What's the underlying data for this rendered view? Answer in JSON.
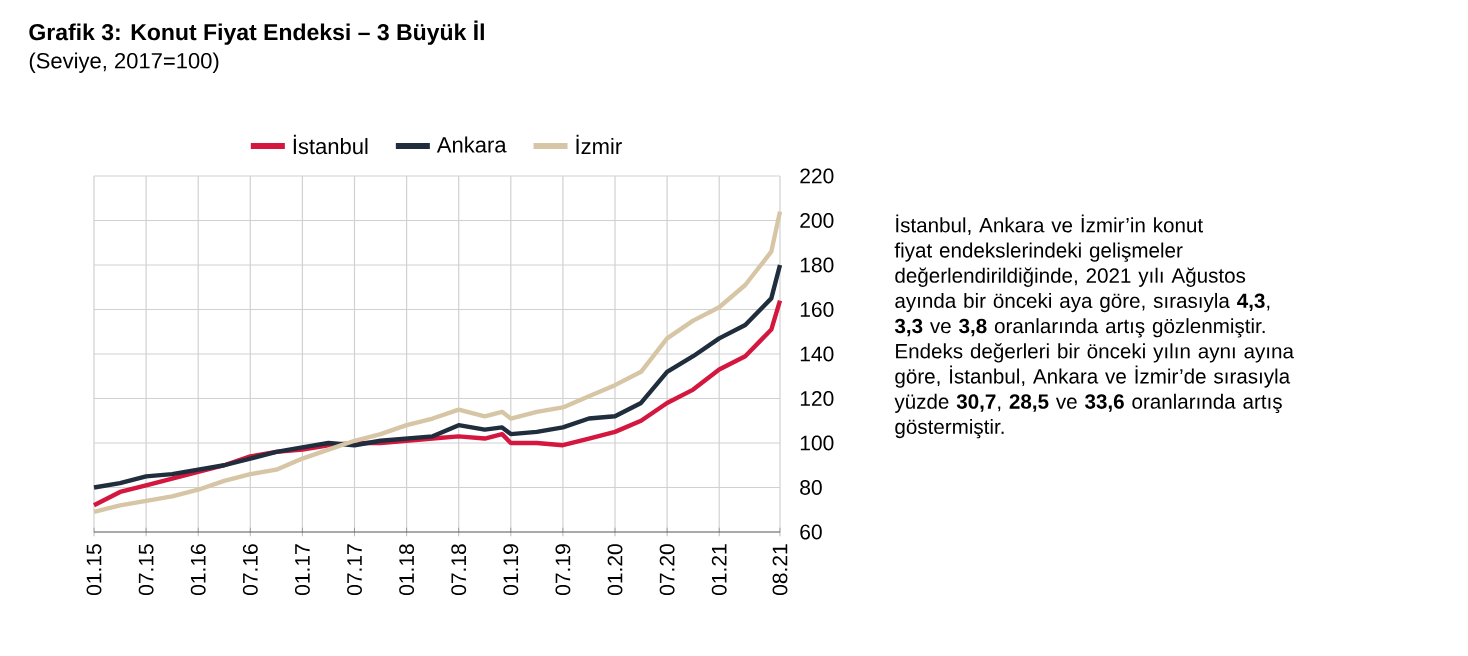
{
  "chart_data": {
    "type": "line",
    "title": "Grafik 3: Konut Fiyat Endeksi – 3 Büyük İl",
    "subtitle": "(Seviye, 2017=100)",
    "annotations": [
      "İstanbul, Ankara ve İzmir’in konut fiyat endekslerindeki gelişmeler değerlendirildiğinde, 2021 yılı Ağustos ayında bir önceki aya göre, sırasıyla **4,3**, **3,3** ve **3,8** oranlarında artış gözlenmiştir. Endeks değerleri bir önceki yılın aynı ayına göre, İstanbul, Ankara ve İzmir’de sırasıyla yüzde **30,7**, **28,5** ve **33,6** oranlarında artış göstermiştir."
    ],
    "x": [
      "2015-01",
      "2015-04",
      "2015-07",
      "2015-10",
      "2016-01",
      "2016-04",
      "2016-07",
      "2016-10",
      "2017-01",
      "2017-04",
      "2017-07",
      "2017-10",
      "2018-01",
      "2018-04",
      "2018-07",
      "2018-10",
      "2018-12",
      "2019-01",
      "2019-04",
      "2019-07",
      "2019-10",
      "2020-01",
      "2020-04",
      "2020-07",
      "2020-10",
      "2021-01",
      "2021-04",
      "2021-07",
      "2021-08"
    ],
    "series": [
      {
        "name": "İstanbul",
        "color": "#d4173f",
        "values": [
          72,
          78,
          81,
          84,
          87,
          90,
          94,
          96,
          97,
          99,
          100,
          100,
          101,
          102,
          103,
          102,
          104,
          100,
          100,
          99,
          102,
          105,
          110,
          118,
          124,
          133,
          139,
          151,
          164
        ]
      },
      {
        "name": "Ankara",
        "color": "#1f2d3d",
        "values": [
          80,
          82,
          85,
          86,
          88,
          90,
          93,
          96,
          98,
          100,
          99,
          101,
          102,
          103,
          108,
          106,
          107,
          104,
          105,
          107,
          111,
          112,
          118,
          132,
          139,
          147,
          153,
          165,
          180
        ]
      },
      {
        "name": "İzmir",
        "color": "#d6c6a6",
        "values": [
          69,
          72,
          74,
          76,
          79,
          83,
          86,
          88,
          93,
          97,
          101,
          104,
          108,
          111,
          115,
          112,
          114,
          111,
          114,
          116,
          121,
          126,
          132,
          147,
          155,
          161,
          171,
          186,
          204
        ]
      }
    ],
    "xlim": [
      "2015-01",
      "2021-08"
    ],
    "xticks": [
      {
        "value": "2015-01",
        "label": "01.15"
      },
      {
        "value": "2015-07",
        "label": "07.15"
      },
      {
        "value": "2016-01",
        "label": "01.16"
      },
      {
        "value": "2016-07",
        "label": "07.16"
      },
      {
        "value": "2017-01",
        "label": "01.17"
      },
      {
        "value": "2017-07",
        "label": "07.17"
      },
      {
        "value": "2018-01",
        "label": "01.18"
      },
      {
        "value": "2018-07",
        "label": "07.18"
      },
      {
        "value": "2019-01",
        "label": "01.19"
      },
      {
        "value": "2019-07",
        "label": "07.19"
      },
      {
        "value": "2020-01",
        "label": "01.20"
      },
      {
        "value": "2020-07",
        "label": "07.20"
      },
      {
        "value": "2021-01",
        "label": "01.21"
      },
      {
        "value": "2021-08",
        "label": "08.21"
      }
    ],
    "ylim": [
      60,
      220
    ],
    "yticks": [
      60,
      80,
      100,
      120,
      140,
      160,
      180,
      200,
      220
    ],
    "grid": true,
    "legend": "top",
    "marker": "none",
    "line_style": "solid"
  }
}
